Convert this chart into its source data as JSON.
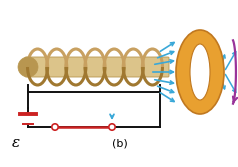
{
  "bg_color": "#ffffff",
  "solenoid_color": "#dcc48a",
  "solenoid_dark": "#b89650",
  "coil_color": "#c8a060",
  "coil_front": "#a07830",
  "ring_color": "#e8a030",
  "ring_dark": "#c07820",
  "arrow_color": "#3aa8d8",
  "circuit_line_color": "#111111",
  "switch_line_color": "#cc2222",
  "battery_color": "#cc2222",
  "purple_arrow_color": "#993399",
  "small_arrow_color": "#3aa8d8",
  "label_b": "(b)",
  "label_eps": "ε",
  "fig_width": 2.38,
  "fig_height": 1.67,
  "dpi": 100
}
